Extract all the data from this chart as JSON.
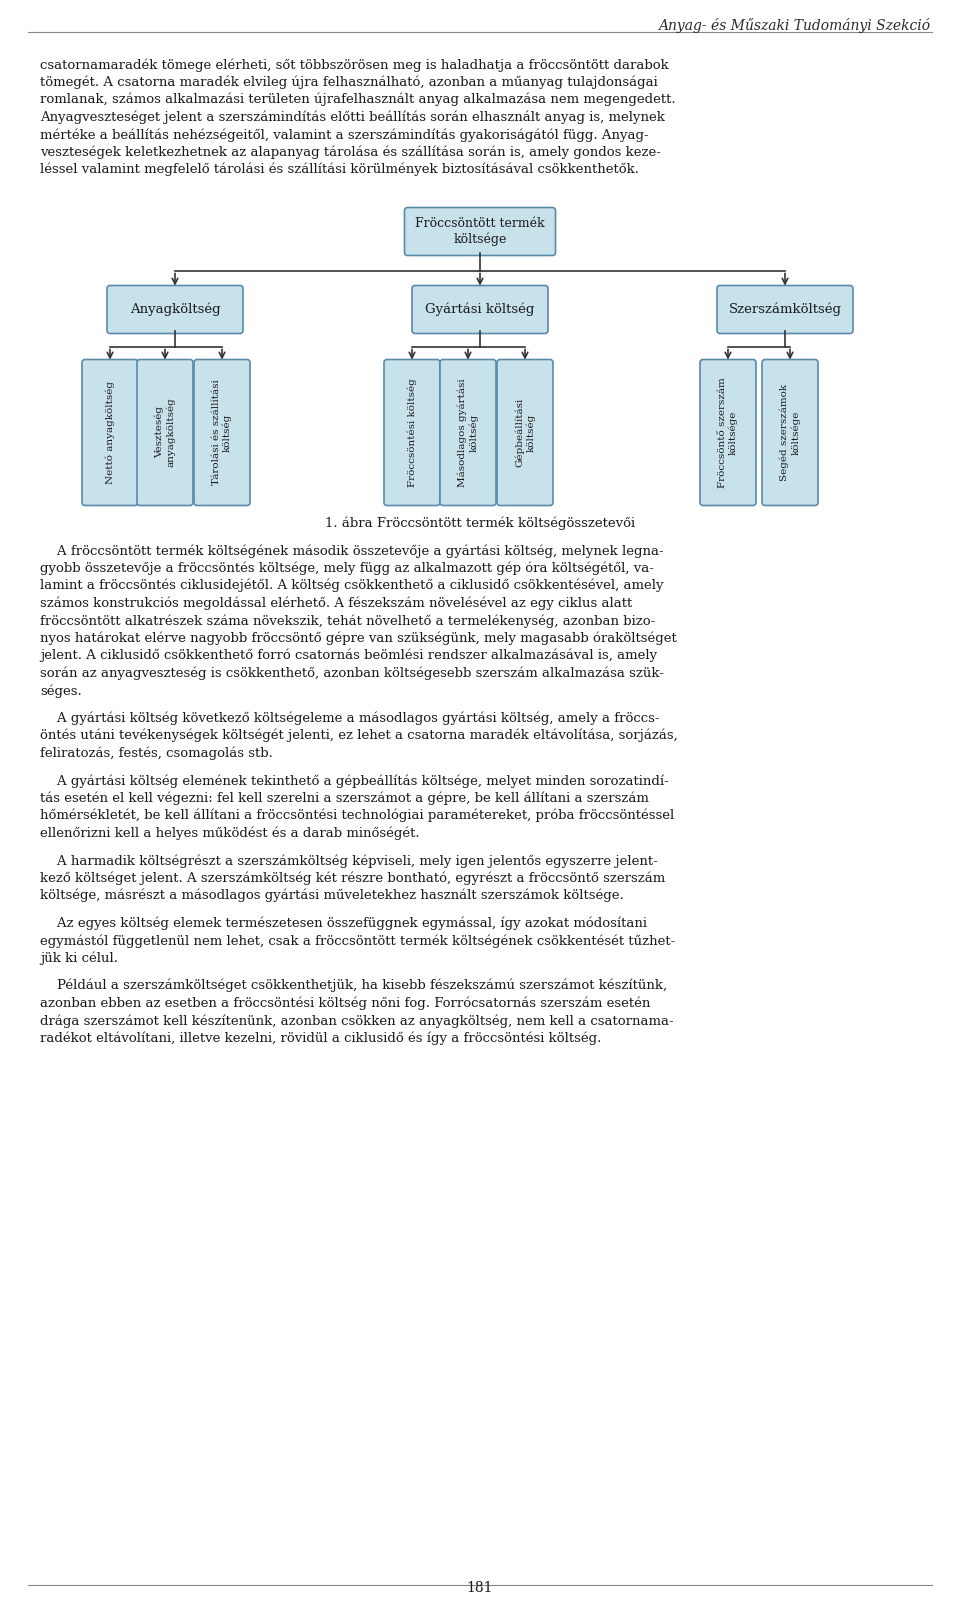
{
  "title_right": "Anyag- és Műszaki Tudományi Szekció",
  "page_number": "181",
  "background_color": "#ffffff",
  "text_color": "#1a1a1a",
  "box_fill": "#c8e2ec",
  "box_edge": "#5a8aaa",
  "para1_lines": [
    "csatornamaradék tömege elérheti, sőt többszörösen meg is haladhatja a fröccsöntött darabok",
    "tömegét. A csatorna maradék elvileg újra felhasználható, azonban a műanyag tulajdonságai",
    "romlanak, számos alkalmazási területen újrafelhasznált anyag alkalmazása nem megengedett.",
    "Anyagveszteséget jelent a szerszámindítás előtti beállítás során elhasznált anyag is, melynek",
    "mértéke a beállítás nehézségeitől, valamint a szerszámindítás gyakoriságától függ. Anyag-",
    "veszteségek keletkezhetnek az alapanyag tárolása és szállítása során is, amely gondos keze-",
    "léssel valamint megfelelő tárolási és szállítási körülmények biztosításával csökkenthetők."
  ],
  "caption": "1. ábra Fröccsöntött termék költségösszetevői",
  "para2_lines": [
    "    A fröccsöntött termék költségének második összetevője a gyártási költség, melynek legna-",
    "gyobb összetevője a fröccsöntés költsége, mely függ az alkalmazott gép óra költségétől, va-",
    "lamint a fröccsöntés ciklusidejétől. A költség csökkenthető a ciklusidő csökkentésével, amely",
    "számos konstrukciós megoldással elérhető. A fészekszám növelésével az egy ciklus alatt",
    "fröccsöntött alkatrészek száma növekszik, tehát növelhető a termelékenység, azonban bizo-",
    "nyos határokat elérve nagyobb fröccsöntő gépre van szükségünk, mely magasabb óraköltséget",
    "jelent. A ciklusidő csökkenthető forró csatornás beömlési rendszer alkalmazásával is, amely",
    "során az anyagveszteség is csökkenthető, azonban költségesebb szerszám alkalmazása szük-",
    "séges."
  ],
  "para3_lines": [
    "    A gyártási költség következő költségeleme a másodlagos gyártási költség, amely a fröccs-",
    "öntés utáni tevékenységek költségét jelenti, ez lehet a csatorna maradék eltávolítása, sorjázás,",
    "feliratozás, festés, csomagolás stb."
  ],
  "para4_lines": [
    "    A gyártási költség elemének tekinthető a gépbeállítás költsége, melyet minden sorozatindí-",
    "tás esetén el kell végezni: fel kell szerelni a szerszámot a gépre, be kell állítani a szerszám",
    "hőmérsékletét, be kell állítani a fröccsöntési technológiai paramétereket, próba fröccsöntéssel",
    "ellenőrizni kell a helyes működést és a darab minőségét."
  ],
  "para5_lines": [
    "    A harmadik költségrészt a szerszámköltség képviseli, mely igen jelentős egyszerre jelent-",
    "kező költséget jelent. A szerszámköltség két részre bontható, egyrészt a fröccsöntő szerszám",
    "költsége, másrészt a másodlagos gyártási műveletekhez használt szerszámok költsége."
  ],
  "para6_lines": [
    "    Az egyes költség elemek természetesen összefüggnek egymással, így azokat módosítani",
    "egymástól függetlenül nem lehet, csak a fröccsöntött termék költségének csökkentését tűzhet-",
    "jük ki célul."
  ],
  "para7_lines": [
    "    Például a szerszámköltséget csökkenthetjük, ha kisebb fészekszámú szerszámot készítünk,",
    "azonban ebben az esetben a fröccsöntési költség nőni fog. Forrócsatornás szerszám esetén",
    "drága szerszámot kell készítenünk, azonban csökken az anyagköltség, nem kell a csatornama-",
    "radékot eltávolítani, illetve kezelni, rövidül a ciklusidő és így a fröccsöntési költség."
  ],
  "root_label": "Fröccsöntött termék\nköltsége",
  "l1_labels": [
    "Anyagköltség",
    "Gyártási költség",
    "Szerszámköltség"
  ],
  "anyag_children": [
    "Nettó anyagköltség",
    "Veszteség\nanyagköltség",
    "Tárolási és szállítási\nköltség"
  ],
  "gyartasi_children": [
    "Fröccsöntési költség",
    "Másodlagos gyártási\nköltség",
    "Gépbeállítási\nköltség"
  ],
  "szerszam_children": [
    "Fröccsöntő szerszám\nköltsége",
    "Segéd szerszámok\nköltsége"
  ]
}
